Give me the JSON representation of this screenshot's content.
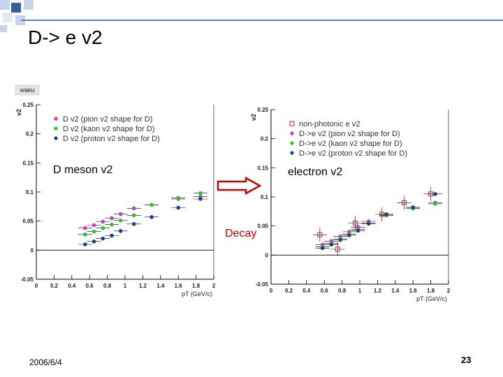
{
  "slide": {
    "title": "D-> e v2",
    "date": "2006/6/4",
    "page_number": "23",
    "decay_label": "Decay",
    "colors": {
      "accent_blue": "#1f3f8f",
      "arrow_red": "#cc0000",
      "square_light": "#c8d4ea",
      "square_dark": "#3c5d9c"
    }
  },
  "chart_data": [
    {
      "type": "scatter",
      "corner_label": "waku",
      "overlay_label": "D meson v2",
      "ylabel": "v2",
      "xlabel": "pT (GeV/c)",
      "xlim": [
        0,
        2
      ],
      "ylim": [
        -0.05,
        0.25
      ],
      "xticks": [
        "0",
        "0.2",
        "0.4",
        "0.6",
        "0.8",
        "1",
        "1.2",
        "1.4",
        "1.6",
        "1.8",
        "2"
      ],
      "yticks": [
        "-0.05",
        "0",
        "0.05",
        "0.1",
        "0.15",
        "0.2",
        "0.25"
      ],
      "legend_position": "top-left",
      "series": [
        {
          "name": "D v2 (pion v2 shape for D)",
          "color": "#d633c8",
          "x": [
            0.55,
            0.65,
            0.75,
            0.85,
            0.95,
            1.1,
            1.3,
            1.6,
            1.85
          ],
          "y": [
            0.038,
            0.043,
            0.049,
            0.055,
            0.062,
            0.072,
            0.078,
            0.088,
            0.092
          ]
        },
        {
          "name": "D v2 (kaon v2 shape for D)",
          "color": "#22cc22",
          "x": [
            0.55,
            0.65,
            0.75,
            0.85,
            0.95,
            1.1,
            1.3,
            1.6,
            1.85
          ],
          "y": [
            0.027,
            0.032,
            0.038,
            0.044,
            0.051,
            0.06,
            0.078,
            0.09,
            0.098
          ]
        },
        {
          "name": "D v2 (proton v2 shape for D)",
          "color": "#1f3f8f",
          "x": [
            0.55,
            0.65,
            0.75,
            0.85,
            0.95,
            1.1,
            1.3,
            1.6,
            1.85
          ],
          "y": [
            0.01,
            0.015,
            0.02,
            0.025,
            0.033,
            0.045,
            0.057,
            0.073,
            0.088
          ]
        }
      ]
    },
    {
      "type": "scatter",
      "overlay_label": "electron v2",
      "ylabel": "v2",
      "xlabel": "pT (GeV/c)",
      "xlim": [
        0,
        2
      ],
      "ylim": [
        -0.05,
        0.25
      ],
      "xticks": [
        "0",
        "0.2",
        "0.4",
        "0.6",
        "0.8",
        "1",
        "1.2",
        "1.4",
        "1.6",
        "1.8",
        "2"
      ],
      "yticks": [
        "-0.05",
        "0",
        "0.05",
        "0.1",
        "0.15",
        "0.2",
        "0.25"
      ],
      "legend_position": "top-right",
      "series": [
        {
          "name": "non-photonic e v2",
          "color": "#cc2222",
          "marker": "open-square",
          "x": [
            0.55,
            0.75,
            0.95,
            1.25,
            1.5,
            1.8
          ],
          "y": [
            0.035,
            0.01,
            0.055,
            0.07,
            0.09,
            0.105
          ]
        },
        {
          "name": "D->e v2 (pion v2 shape for D)",
          "color": "#d633c8",
          "x": [
            0.58,
            0.68,
            0.78,
            0.88,
            0.98,
            1.1,
            1.3,
            1.6,
            1.85
          ],
          "y": [
            0.018,
            0.024,
            0.032,
            0.04,
            0.048,
            0.058,
            0.07,
            0.082,
            0.09
          ]
        },
        {
          "name": "D->e v2 (kaon v2 shape for D)",
          "color": "#22cc22",
          "x": [
            0.58,
            0.68,
            0.78,
            0.88,
            0.98,
            1.1,
            1.3,
            1.6,
            1.85
          ],
          "y": [
            0.014,
            0.02,
            0.028,
            0.036,
            0.044,
            0.055,
            0.068,
            0.08,
            0.088
          ]
        },
        {
          "name": "D->e v2 (proton v2 shape for D)",
          "color": "#1f3f8f",
          "x": [
            0.58,
            0.68,
            0.78,
            0.88,
            0.98,
            1.1,
            1.3,
            1.6,
            1.85
          ],
          "y": [
            0.012,
            0.018,
            0.026,
            0.034,
            0.042,
            0.054,
            0.07,
            0.082,
            0.105
          ]
        }
      ]
    }
  ]
}
